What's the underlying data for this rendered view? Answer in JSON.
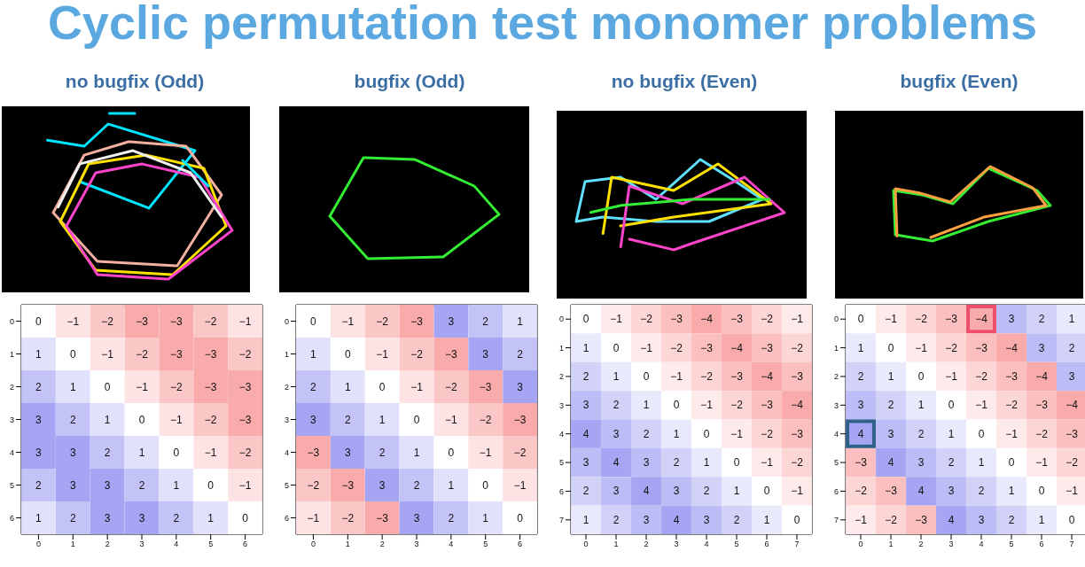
{
  "chart_data": [
    {
      "type": "heatmap",
      "title": "Cyclic permutation test monomer problems",
      "subtitle": "no bugfix (Odd)",
      "categories": [
        "0",
        "1",
        "2",
        "3",
        "4",
        "5",
        "6"
      ],
      "y_categories": [
        "0",
        "1",
        "2",
        "3",
        "4",
        "5",
        "6"
      ],
      "data_labels": true,
      "cells": [
        [
          0,
          -1,
          -2,
          -3,
          -3,
          -2,
          -1
        ],
        [
          1,
          0,
          -1,
          -2,
          -3,
          -3,
          -2
        ],
        [
          2,
          1,
          0,
          -1,
          -2,
          -3,
          -3
        ],
        [
          3,
          2,
          1,
          0,
          -1,
          -2,
          -3
        ],
        [
          3,
          3,
          2,
          1,
          0,
          -1,
          -2
        ],
        [
          2,
          3,
          3,
          2,
          1,
          0,
          -1
        ],
        [
          1,
          2,
          3,
          3,
          2,
          1,
          0
        ]
      ]
    },
    {
      "type": "heatmap",
      "subtitle": "bugfix (Odd)",
      "categories": [
        "0",
        "1",
        "2",
        "3",
        "4",
        "5",
        "6"
      ],
      "y_categories": [
        "0",
        "1",
        "2",
        "3",
        "4",
        "5",
        "6"
      ],
      "data_labels": true,
      "cells": [
        [
          0,
          -1,
          -2,
          -3,
          3,
          2,
          1
        ],
        [
          1,
          0,
          -1,
          -2,
          -3,
          3,
          2
        ],
        [
          2,
          1,
          0,
          -1,
          -2,
          -3,
          3
        ],
        [
          3,
          2,
          1,
          0,
          -1,
          -2,
          -3
        ],
        [
          -3,
          3,
          2,
          1,
          0,
          -1,
          -2
        ],
        [
          -2,
          -3,
          3,
          2,
          1,
          0,
          -1
        ],
        [
          -1,
          -2,
          -3,
          3,
          2,
          1,
          0
        ]
      ]
    },
    {
      "type": "heatmap",
      "subtitle": "no bugfix (Even)",
      "categories": [
        "0",
        "1",
        "2",
        "3",
        "4",
        "5",
        "6",
        "7"
      ],
      "y_categories": [
        "0",
        "1",
        "2",
        "3",
        "4",
        "5",
        "6",
        "7"
      ],
      "data_labels": true,
      "cells": [
        [
          0,
          -1,
          -2,
          -3,
          -4,
          -3,
          -2,
          -1
        ],
        [
          1,
          0,
          -1,
          -2,
          -3,
          -4,
          -3,
          -2
        ],
        [
          2,
          1,
          0,
          -1,
          -2,
          -3,
          -4,
          -3
        ],
        [
          3,
          2,
          1,
          0,
          -1,
          -2,
          -3,
          -4
        ],
        [
          4,
          3,
          2,
          1,
          0,
          -1,
          -2,
          -3
        ],
        [
          3,
          4,
          3,
          2,
          1,
          0,
          -1,
          -2
        ],
        [
          2,
          3,
          4,
          3,
          2,
          1,
          0,
          -1
        ],
        [
          1,
          2,
          3,
          4,
          3,
          2,
          1,
          0
        ]
      ]
    },
    {
      "type": "heatmap",
      "subtitle": "bugfix (Even)",
      "categories": [
        "0",
        "1",
        "2",
        "3",
        "4",
        "5",
        "6",
        "7"
      ],
      "y_categories": [
        "0",
        "1",
        "2",
        "3",
        "4",
        "5",
        "6",
        "7"
      ],
      "data_labels": true,
      "cells": [
        [
          0,
          -1,
          -2,
          -3,
          -4,
          3,
          2,
          1
        ],
        [
          1,
          0,
          -1,
          -2,
          -3,
          -4,
          3,
          2
        ],
        [
          2,
          1,
          0,
          -1,
          -2,
          -3,
          -4,
          3
        ],
        [
          3,
          2,
          1,
          0,
          -1,
          -2,
          -3,
          -4
        ],
        [
          4,
          3,
          2,
          1,
          0,
          -1,
          -2,
          -3
        ],
        [
          -3,
          4,
          3,
          2,
          1,
          0,
          -1,
          -2
        ],
        [
          -2,
          -3,
          4,
          3,
          2,
          1,
          0,
          -1
        ],
        [
          -1,
          -2,
          -3,
          4,
          3,
          2,
          1,
          0
        ]
      ]
    }
  ]
}
